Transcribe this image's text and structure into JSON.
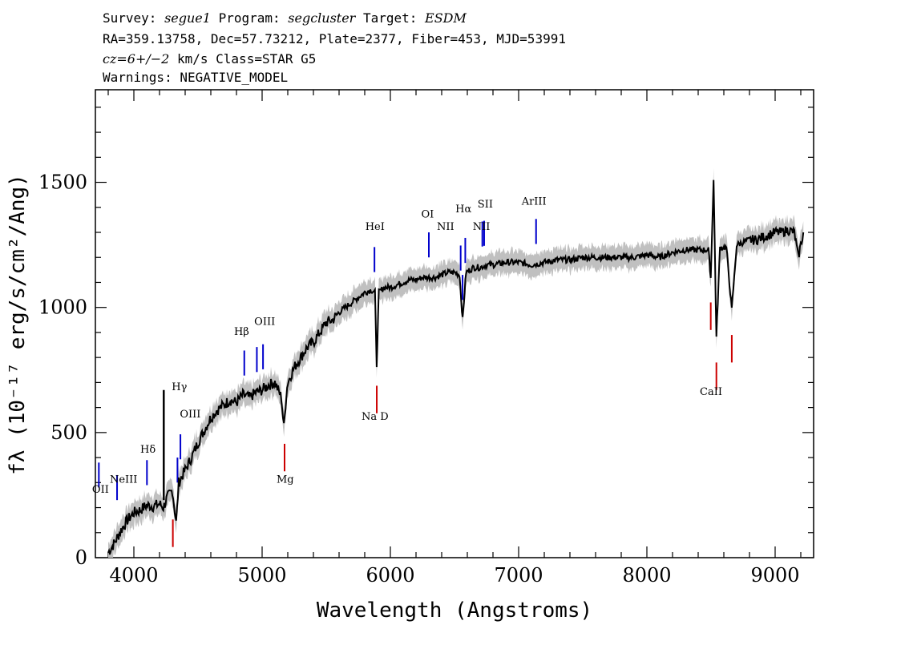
{
  "header": {
    "line1": {
      "survey_label": "Survey: ",
      "survey": "segue1",
      "program_label": " Program: ",
      "program": "segcluster",
      "target_label": " Target: ",
      "target": "ESDM"
    },
    "line2": "RA=359.13758, Dec=57.73212, Plate=2377, Fiber=453, MJD=53991",
    "line3": {
      "cz": "cz=6+/−2",
      "rest": " km/s Class=STAR G5"
    },
    "line4": "Warnings: NEGATIVE_MODEL"
  },
  "colors": {
    "flux": "#000000",
    "error": "#c0c0c0",
    "emission": "#0000cc",
    "absorption": "#cc0000",
    "axis": "#000000"
  },
  "chart_data": {
    "type": "line",
    "title": "",
    "xlabel": "Wavelength (Angstroms)",
    "ylabel": "fλ (10⁻¹⁷ erg/s/cm²/Ang)",
    "xlim": [
      3700,
      9300
    ],
    "ylim": [
      0,
      1870
    ],
    "x_ticks": [
      4000,
      5000,
      6000,
      7000,
      8000,
      9000
    ],
    "y_ticks": [
      0,
      500,
      1000,
      1500
    ],
    "series": [
      {
        "name": "flux",
        "x": [
          3800,
          3850,
          3900,
          3950,
          4000,
          4050,
          4100,
          4150,
          4200,
          4230,
          4260,
          4300,
          4330,
          4350,
          4400,
          4450,
          4500,
          4550,
          4600,
          4650,
          4700,
          4750,
          4800,
          4850,
          4900,
          4950,
          5000,
          5050,
          5100,
          5150,
          5170,
          5190,
          5200,
          5250,
          5300,
          5350,
          5400,
          5450,
          5500,
          5550,
          5600,
          5650,
          5700,
          5750,
          5800,
          5850,
          5880,
          5893,
          5910,
          5950,
          6000,
          6050,
          6100,
          6150,
          6200,
          6250,
          6300,
          6350,
          6400,
          6450,
          6500,
          6540,
          6563,
          6590,
          6650,
          6700,
          6750,
          6800,
          6900,
          7000,
          7100,
          7200,
          7300,
          7400,
          7500,
          7600,
          7700,
          7800,
          7900,
          8000,
          8100,
          8200,
          8300,
          8400,
          8480,
          8498,
          8520,
          8542,
          8570,
          8620,
          8662,
          8700,
          8750,
          8800,
          8850,
          8900,
          8950,
          9000,
          9050,
          9100,
          9150,
          9180,
          9200,
          9220
        ],
        "y": [
          20,
          60,
          110,
          150,
          180,
          190,
          210,
          205,
          215,
          200,
          240,
          270,
          140,
          300,
          350,
          400,
          460,
          510,
          560,
          590,
          610,
          630,
          620,
          650,
          640,
          660,
          670,
          690,
          700,
          640,
          520,
          660,
          700,
          760,
          800,
          840,
          860,
          900,
          940,
          950,
          980,
          1000,
          1020,
          1040,
          1060,
          1070,
          1060,
          770,
          1060,
          1080,
          1080,
          1090,
          1100,
          1110,
          1110,
          1120,
          1120,
          1120,
          1130,
          1140,
          1140,
          1130,
          950,
          1140,
          1160,
          1160,
          1170,
          1170,
          1180,
          1180,
          1170,
          1180,
          1190,
          1190,
          1200,
          1200,
          1200,
          1200,
          1200,
          1210,
          1200,
          1220,
          1230,
          1230,
          1230,
          1120,
          1510,
          880,
          1240,
          1240,
          990,
          1250,
          1260,
          1270,
          1270,
          1280,
          1290,
          1300,
          1300,
          1310,
          1300,
          1200,
          1250,
          1300
        ]
      }
    ],
    "spikes": [
      {
        "x": 4233,
        "y": 670,
        "note": "spike"
      }
    ],
    "emission_lines": [
      {
        "name": "OII",
        "wavelength": 3727
      },
      {
        "name": "NeIII",
        "wavelength": 3869
      },
      {
        "name": "Hδ",
        "wavelength": 4102
      },
      {
        "name": "Hγ",
        "wavelength": 4340
      },
      {
        "name": "OIII",
        "wavelength": 4363
      },
      {
        "name": "Hβ",
        "wavelength": 4861
      },
      {
        "name": "OIII",
        "wavelength": 4959
      },
      {
        "name": "OIII",
        "wavelength": 5007
      },
      {
        "name": "HeI",
        "wavelength": 5876
      },
      {
        "name": "OI",
        "wavelength": 6300
      },
      {
        "name": "NII",
        "wavelength": 6548
      },
      {
        "name": "Hα",
        "wavelength": 6563
      },
      {
        "name": "NII",
        "wavelength": 6584
      },
      {
        "name": "SII",
        "wavelength": 6717
      },
      {
        "name": "SII",
        "wavelength": 6731
      },
      {
        "name": "ArIII",
        "wavelength": 7136
      }
    ],
    "absorption_lines": [
      {
        "name": "",
        "wavelength": 4304
      },
      {
        "name": "Mg",
        "wavelength": 5175
      },
      {
        "name": "Na D",
        "wavelength": 5894
      },
      {
        "name": "CaII",
        "wavelength": 8498
      },
      {
        "name": "CaII",
        "wavelength": 8542
      },
      {
        "name": "CaII",
        "wavelength": 8662
      }
    ],
    "line_labels": [
      {
        "text": "OII",
        "x": 3740,
        "y": 260
      },
      {
        "text": "NeIII",
        "x": 3920,
        "y": 300
      },
      {
        "text": "Hδ",
        "x": 4110,
        "y": 420
      },
      {
        "text": "Hγ",
        "x": 4355,
        "y": 670
      },
      {
        "text": "OIII",
        "x": 4440,
        "y": 560
      },
      {
        "text": "Hβ",
        "x": 4840,
        "y": 890
      },
      {
        "text": "OIII",
        "x": 5020,
        "y": 930
      },
      {
        "text": "HeI",
        "x": 5880,
        "y": 1310
      },
      {
        "text": "OI",
        "x": 6290,
        "y": 1360
      },
      {
        "text": "NII",
        "x": 6430,
        "y": 1310
      },
      {
        "text": "Hα",
        "x": 6570,
        "y": 1380
      },
      {
        "text": "SII",
        "x": 6740,
        "y": 1400
      },
      {
        "text": "NII",
        "x": 6710,
        "y": 1310
      },
      {
        "text": "ArIII",
        "x": 7120,
        "y": 1410
      },
      {
        "text": "Mg",
        "x": 5180,
        "y": 300
      },
      {
        "text": "Na D",
        "x": 5880,
        "y": 550
      },
      {
        "text": "CaII",
        "x": 8500,
        "y": 650
      }
    ]
  }
}
